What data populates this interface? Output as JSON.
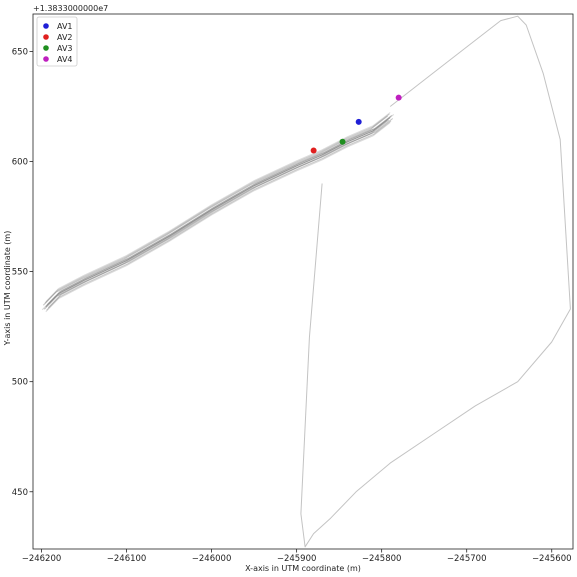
{
  "chart_data": {
    "type": "scatter",
    "title": "",
    "xlabel": "X-axis in UTM coordinate (m)",
    "ylabel": "Y-axis in UTM coordinate (m)",
    "y_offset_label": "+1.3833000000e7",
    "xlim": [
      -246210,
      -245575
    ],
    "ylim": [
      424,
      667
    ],
    "x_ticks": [
      -246200,
      -246100,
      -246000,
      -245900,
      -245800,
      -245700,
      -245600
    ],
    "x_tick_labels": [
      "−246200",
      "−246100",
      "−246000",
      "−245900",
      "−245800",
      "−245700",
      "−245600"
    ],
    "y_ticks": [
      450,
      500,
      550,
      600,
      650
    ],
    "y_tick_labels": [
      "450",
      "500",
      "550",
      "600",
      "650"
    ],
    "grid": false,
    "legend_position": "top-left",
    "series": [
      {
        "name": "AV1",
        "color": "#1f1fd6",
        "x": [
          -245827
        ],
        "y": [
          618
        ]
      },
      {
        "name": "AV2",
        "color": "#e0201f",
        "x": [
          -245880
        ],
        "y": [
          605
        ]
      },
      {
        "name": "AV3",
        "color": "#1f8f1f",
        "x": [
          -245846
        ],
        "y": [
          609
        ]
      },
      {
        "name": "AV4",
        "color": "#bf1fbf",
        "x": [
          -245780
        ],
        "y": [
          629
        ]
      }
    ],
    "trajectories": {
      "color": "#8c8c8c",
      "main_corridor": {
        "x": [
          -246195,
          -246180,
          -246150,
          -246100,
          -246050,
          -246000,
          -245950,
          -245900,
          -245870,
          -245840,
          -245810,
          -245790
        ],
        "y": [
          534,
          540,
          546,
          555,
          566,
          578,
          589,
          598,
          603,
          609,
          614,
          620
        ]
      },
      "loop": {
        "x": [
          -245790,
          -245740,
          -245690,
          -245660,
          -245640,
          -245630,
          -245610,
          -245590,
          -245578,
          -245600,
          -245640,
          -245690,
          -245740,
          -245790,
          -245830,
          -245860,
          -245880,
          -245890,
          -245895,
          -245885,
          -245870
        ],
        "y": [
          625,
          640,
          655,
          664,
          666,
          662,
          640,
          610,
          533,
          518,
          500,
          489,
          476,
          463,
          450,
          438,
          431,
          425,
          440,
          520,
          590
        ]
      }
    }
  }
}
